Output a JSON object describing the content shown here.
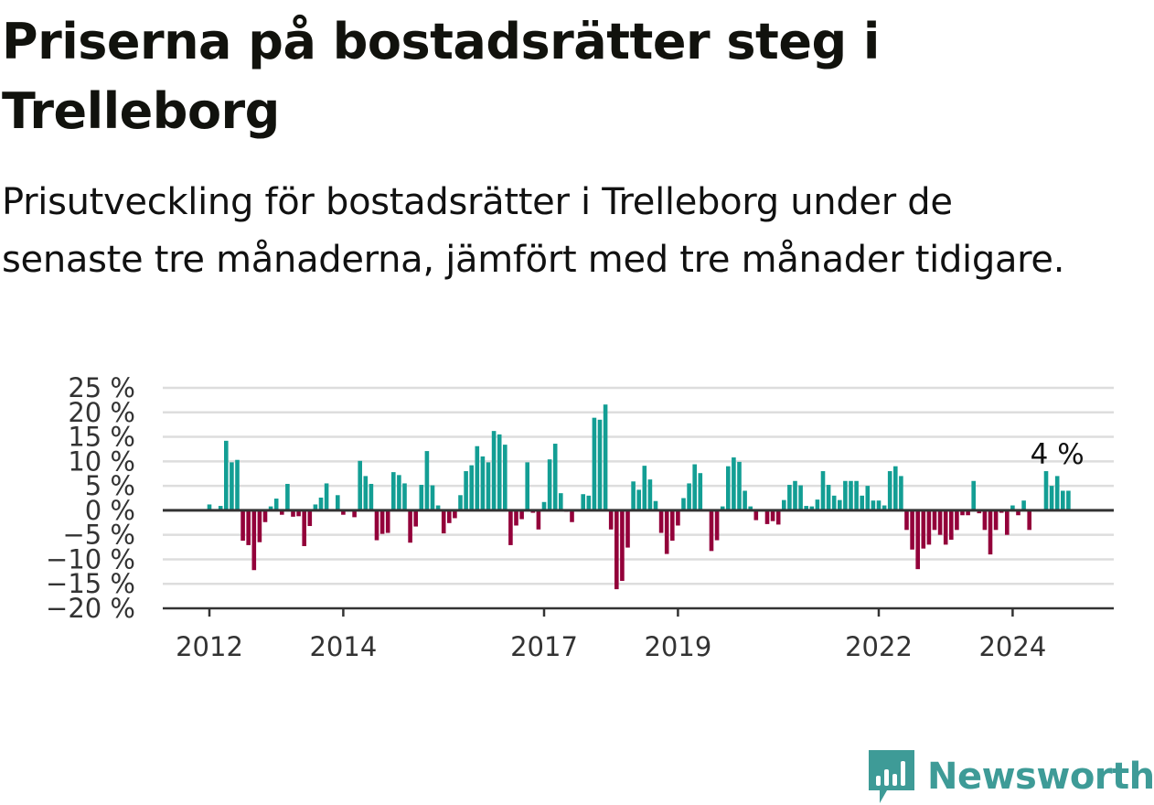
{
  "title": "Priserna på bostadsrätter steg i Trelleborg",
  "subtitle": "Prisutveckling för bostadsrätter i Trelleborg under de senaste tre månaderna, jämfört med tre månader tidigare.",
  "logo": {
    "text": "Newsworthy",
    "icon": "newsworthy-bar-chart-icon"
  },
  "colors": {
    "positive": "#139e94",
    "negative": "#93003a",
    "grid": "#dddddd",
    "axis": "#333333"
  },
  "chart_data": {
    "type": "bar",
    "title": "Priserna på bostadsrätter steg i Trelleborg",
    "xlabel": "",
    "ylabel": "",
    "ylim": [
      -20,
      25
    ],
    "y_ticks": [
      25,
      20,
      15,
      10,
      5,
      0,
      -5,
      -10,
      -15,
      -20
    ],
    "y_tick_labels": [
      "25 %",
      "20 %",
      "15 %",
      "10 %",
      "5 %",
      "0 %",
      "−5 %",
      "−10 %",
      "−15 %",
      "−20 %"
    ],
    "x_ticks": [
      "2012",
      "2014",
      "2017",
      "2019",
      "2022",
      "2024"
    ],
    "grid": true,
    "annotation": {
      "text": "4 %",
      "target": "last bar"
    },
    "categories": [
      "2012-01",
      "2012-02",
      "2012-03",
      "2012-04",
      "2012-05",
      "2012-06",
      "2012-07",
      "2012-08",
      "2012-09",
      "2012-10",
      "2012-11",
      "2012-12",
      "2013-01",
      "2013-02",
      "2013-03",
      "2013-04",
      "2013-05",
      "2013-06",
      "2013-07",
      "2013-08",
      "2013-09",
      "2013-10",
      "2013-11",
      "2013-12",
      "2014-01",
      "2014-02",
      "2014-03",
      "2014-04",
      "2014-05",
      "2014-06",
      "2014-07",
      "2014-08",
      "2014-09",
      "2014-10",
      "2014-11",
      "2014-12",
      "2015-01",
      "2015-02",
      "2015-03",
      "2015-04",
      "2015-05",
      "2015-06",
      "2015-07",
      "2015-08",
      "2015-09",
      "2015-10",
      "2015-11",
      "2015-12",
      "2016-01",
      "2016-02",
      "2016-03",
      "2016-04",
      "2016-05",
      "2016-06",
      "2016-07",
      "2016-08",
      "2016-09",
      "2016-10",
      "2016-11",
      "2016-12",
      "2017-01",
      "2017-02",
      "2017-03",
      "2017-04",
      "2017-05",
      "2017-06",
      "2017-07",
      "2017-08",
      "2017-09",
      "2017-10",
      "2017-11",
      "2017-12",
      "2018-01",
      "2018-02",
      "2018-03",
      "2018-04",
      "2018-05",
      "2018-06",
      "2018-07",
      "2018-08",
      "2018-09",
      "2018-10",
      "2018-11",
      "2018-12",
      "2019-01",
      "2019-02",
      "2019-03",
      "2019-04",
      "2019-05",
      "2019-06",
      "2019-07",
      "2019-08",
      "2019-09",
      "2019-10",
      "2019-11",
      "2019-12",
      "2020-01",
      "2020-02",
      "2020-03",
      "2020-04",
      "2020-05",
      "2020-06",
      "2020-07",
      "2020-08",
      "2020-09",
      "2020-10",
      "2020-11",
      "2020-12",
      "2021-01",
      "2021-02",
      "2021-03",
      "2021-04",
      "2021-05",
      "2021-06",
      "2021-07",
      "2021-08",
      "2021-09",
      "2021-10",
      "2021-11",
      "2021-12",
      "2022-01",
      "2022-02",
      "2022-03",
      "2022-04",
      "2022-05",
      "2022-06",
      "2022-07",
      "2022-08",
      "2022-09",
      "2022-10",
      "2022-11",
      "2022-12",
      "2023-01",
      "2023-02",
      "2023-03",
      "2023-04",
      "2023-05",
      "2023-06",
      "2023-07",
      "2023-08",
      "2023-09",
      "2023-10",
      "2023-11",
      "2023-12",
      "2024-01",
      "2024-02",
      "2024-03",
      "2024-04",
      "2024-05",
      "2024-06",
      "2024-07",
      "2024-08",
      "2024-09",
      "2024-10",
      "2024-11"
    ],
    "values": [
      1.2,
      0,
      0.9,
      14.2,
      9.8,
      10.3,
      -6.2,
      -7.1,
      -12.2,
      -6.5,
      -2.4,
      0.8,
      2.4,
      -0.9,
      5.4,
      -1.3,
      -1.2,
      -7.3,
      -3.2,
      1.2,
      2.6,
      5.5,
      0,
      3.1,
      -0.9,
      0,
      -1.4,
      10.1,
      7.0,
      5.4,
      -6.1,
      -4.8,
      -4.6,
      7.8,
      7.2,
      5.5,
      -6.6,
      -3.3,
      5.2,
      12.1,
      5.1,
      1.0,
      -4.7,
      -2.6,
      -1.6,
      3.1,
      8.0,
      9.2,
      13.1,
      11.0,
      9.8,
      16.2,
      15.5,
      13.4,
      -7.1,
      -3.1,
      -1.8,
      9.8,
      -0.5,
      -3.9,
      1.7,
      10.4,
      13.6,
      3.5,
      -0.3,
      -2.4,
      0,
      3.3,
      3.0,
      18.9,
      18.5,
      21.6,
      -3.9,
      -16.1,
      -14.4,
      -7.6,
      5.9,
      4.2,
      9.1,
      6.3,
      1.9,
      -4.6,
      -8.9,
      -6.2,
      -3.1,
      2.5,
      5.5,
      9.4,
      7.6,
      0,
      -8.3,
      -6.1,
      0.8,
      9.0,
      10.8,
      9.9,
      4.0,
      0.8,
      -2.0,
      0,
      -2.8,
      -2.2,
      -2.9,
      2.1,
      5.2,
      6.0,
      5.1,
      0.9,
      0.8,
      2.2,
      8.0,
      5.2,
      3.0,
      2.1,
      6.0,
      6.0,
      6.0,
      3.0,
      5.0,
      2.0,
      2.0,
      1.0,
      8.0,
      9.0,
      7.0,
      -4.0,
      -8.0,
      -12.0,
      -7.8,
      -7.0,
      -4.0,
      -5.0,
      -7.0,
      -6.0,
      -4.0,
      -1.0,
      -1.0,
      6.0,
      -0.6,
      -4.0,
      -9.0,
      -4.0,
      -0.5,
      -5.0,
      1.0,
      -1.0,
      2.0,
      -4.0,
      0,
      0,
      8.0,
      5.0,
      7.0,
      4.0,
      4.0
    ],
    "series": [
      {
        "values": "see values"
      }
    ]
  }
}
